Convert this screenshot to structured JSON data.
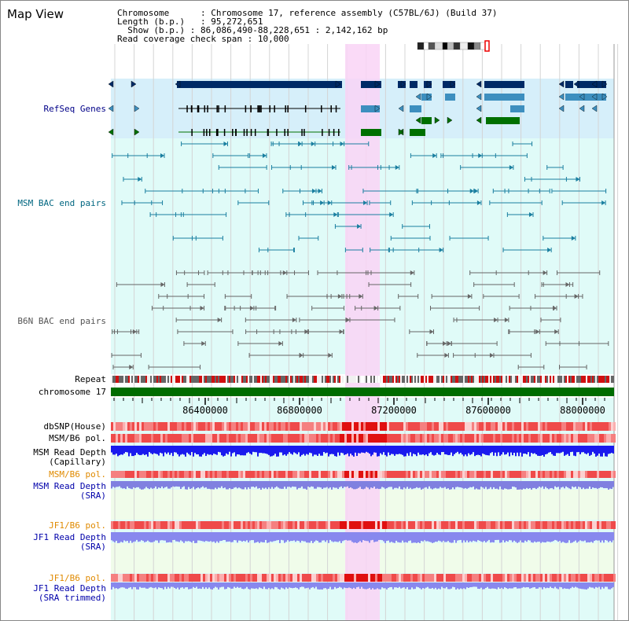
{
  "window": {
    "title": "Map View"
  },
  "info": {
    "chromosome_label": "Chromosome",
    "chromosome_value": "Chromosome 17, reference assembly (C57BL/6J) (Build 37)",
    "length_label": "Length (b.p.)",
    "length_value": "95,272,651",
    "show_label": "Show (b.p.)",
    "show_value": "86,086,490-88,228,651 : 2,142,162 bp",
    "span_label": "Read coverage check span",
    "span_value": "10,000"
  },
  "tracks": {
    "refseq": {
      "label": "RefSeq Genes",
      "color": "#000088"
    },
    "msm_bac": {
      "label": "MSM BAC end pairs",
      "color": "#006680"
    },
    "b6n_bac": {
      "label": "B6N BAC end pairs",
      "color": "#555555"
    },
    "repeat": {
      "label": "Repeat"
    },
    "chrom": {
      "label": "chromosome 17"
    },
    "dbsnp": {
      "label": "dbSNP(House)"
    },
    "msm_b6_pol": {
      "label": "MSM/B6 pol."
    },
    "msm_depth_cap": {
      "label1": "MSM Read Depth",
      "label2": "(Capillary)"
    },
    "msm_b6_pol2": {
      "label": "MSM/B6 pol.",
      "color": "#e08a00"
    },
    "msm_depth_sra": {
      "label1": "MSM Read Depth",
      "label2": "(SRA)",
      "color": "#0000aa"
    },
    "jf1_pol": {
      "label": "JF1/B6 pol.",
      "color": "#e08a00"
    },
    "jf1_depth": {
      "label1": "JF1 Read Depth",
      "label2": "(SRA)",
      "color": "#0000aa"
    },
    "jf1_pol2": {
      "label": "JF1/B6 pol.",
      "color": "#e08a00"
    },
    "jf1_depth_trim": {
      "label1": "JF1 Read Depth",
      "label2": "(SRA trimmed)",
      "color": "#0000aa"
    }
  },
  "axis": {
    "ticks": [
      "86400000",
      "86800000",
      "87200000",
      "87600000",
      "88000000"
    ]
  },
  "colors": {
    "highlight": "#f9d3f6",
    "refseq_bg": "#d6effa",
    "track_bg": "#e0fbf8",
    "sra_bg": "#f0fcea",
    "gene_dark": "#002a66",
    "gene_mid": "#3d8fbf",
    "gene_green": "#007000"
  }
}
